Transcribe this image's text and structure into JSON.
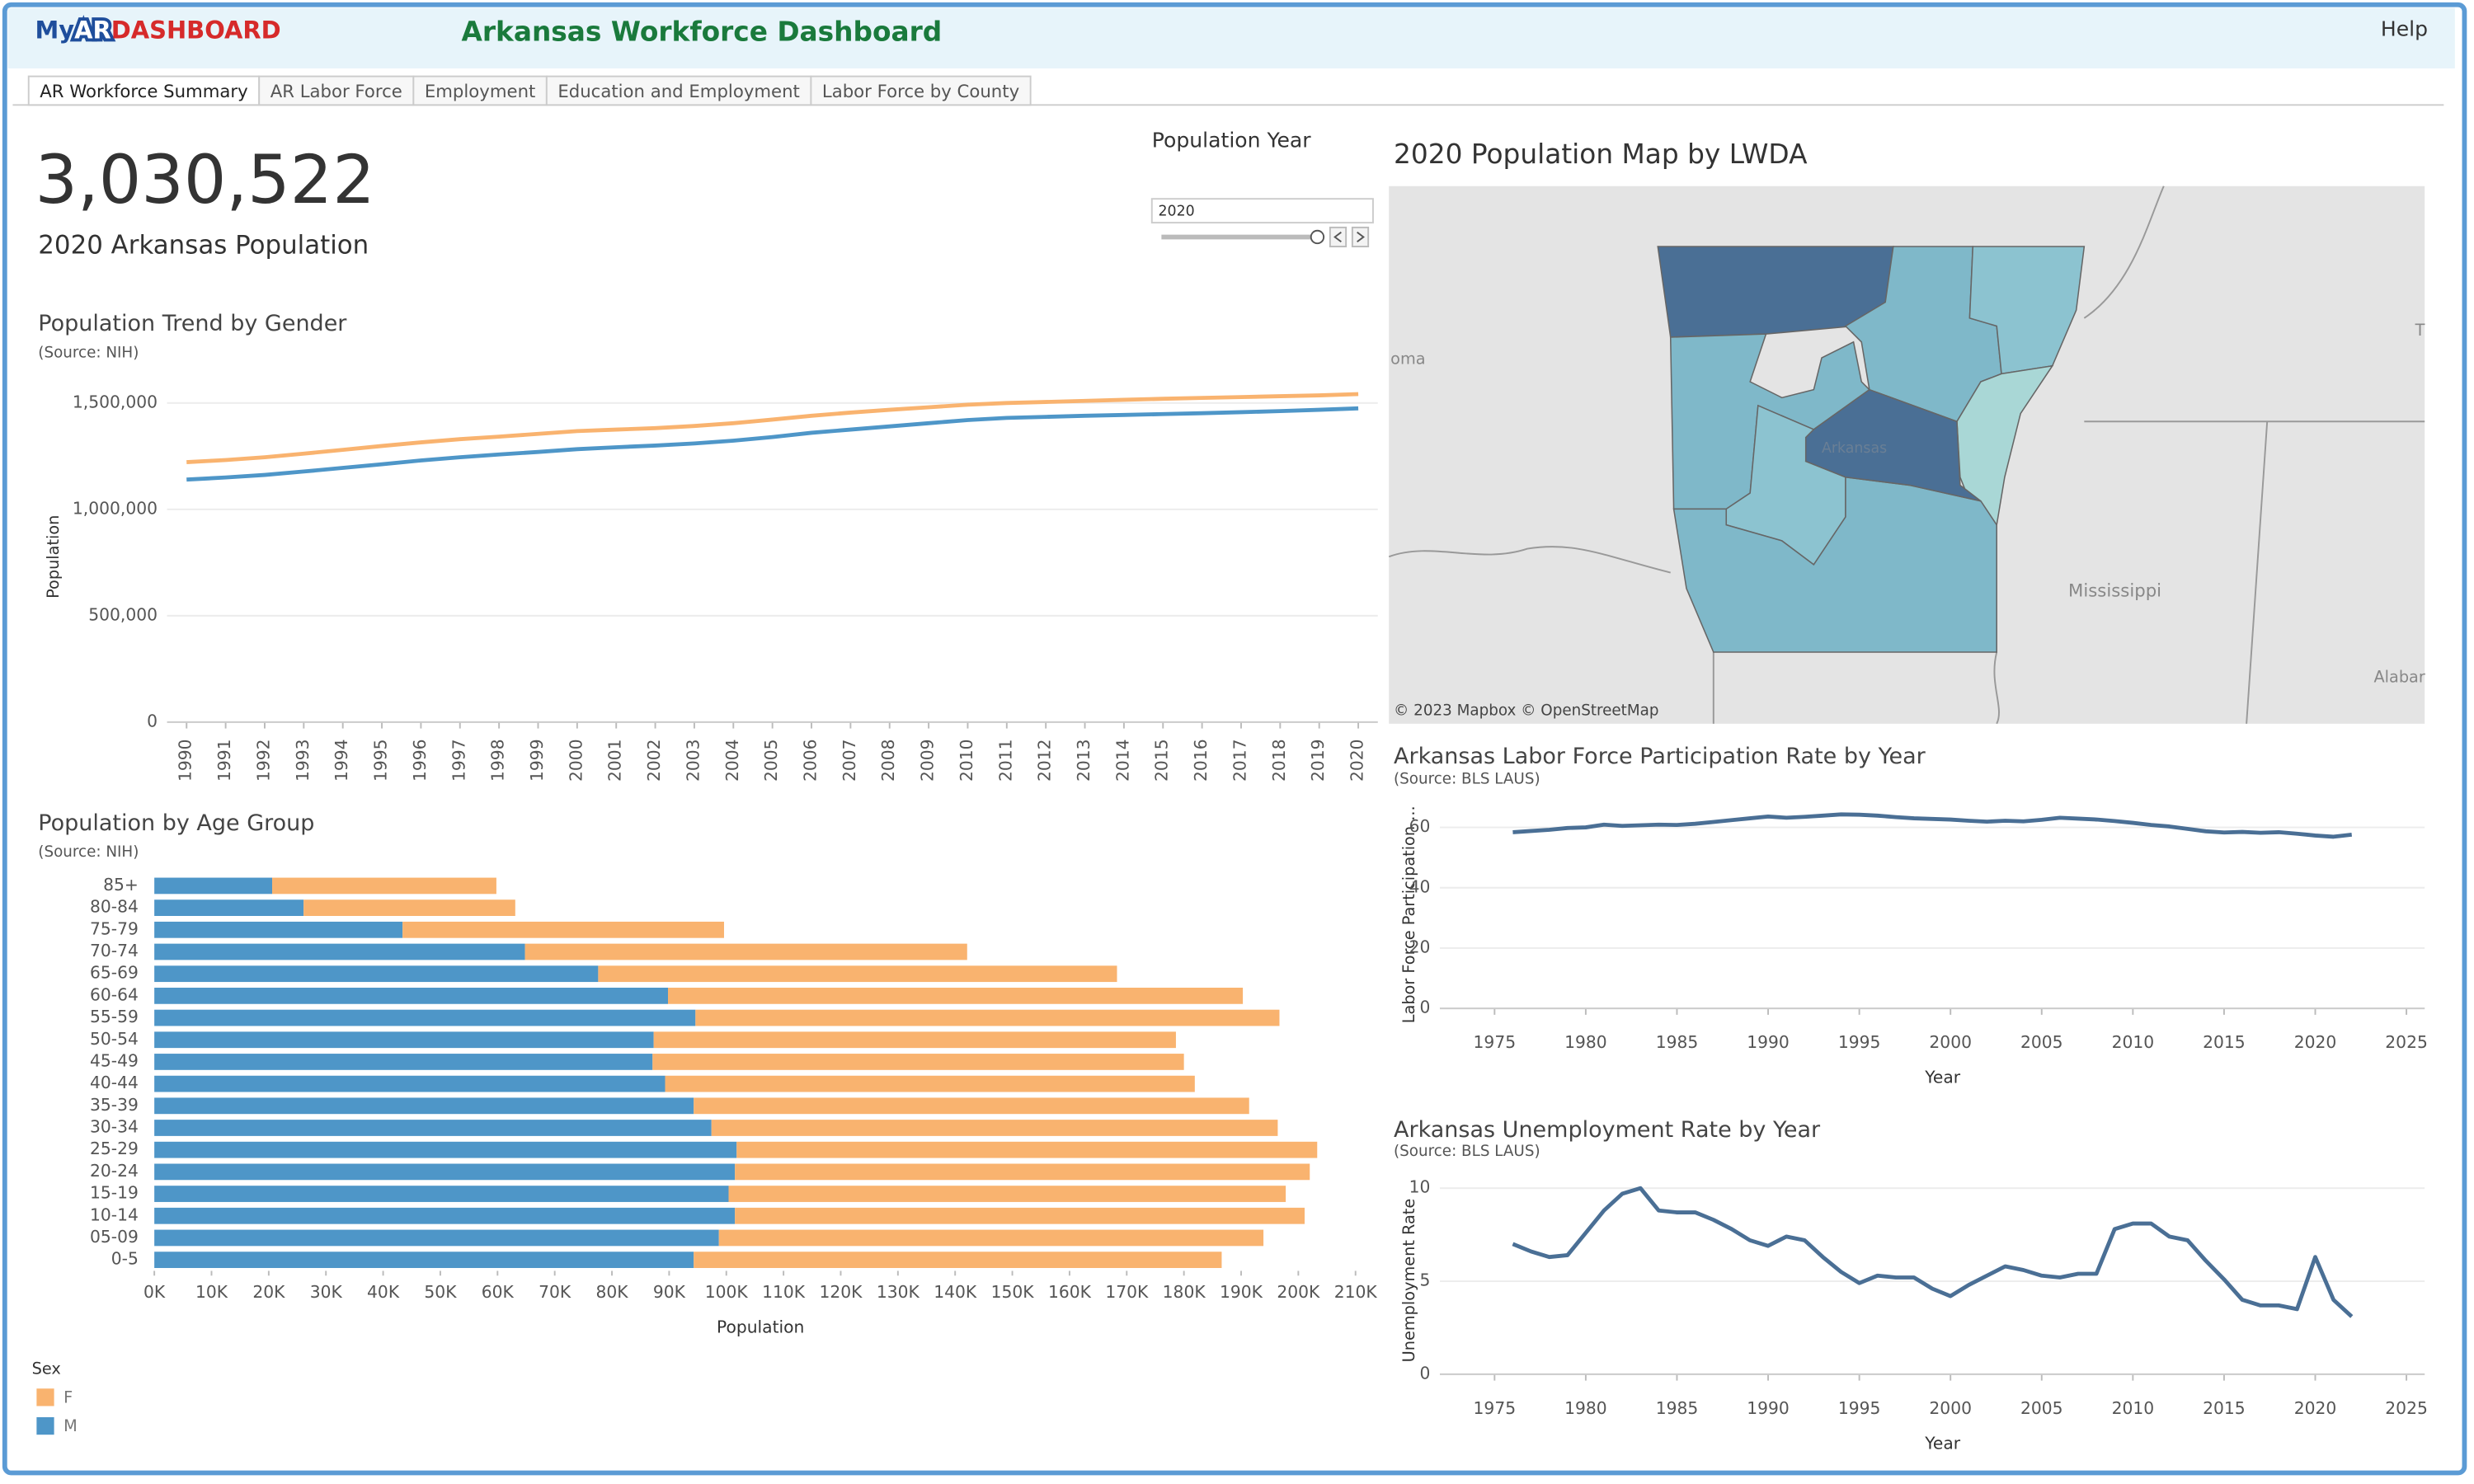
{
  "header": {
    "logo_my": "My",
    "logo_ar": "AR",
    "logo_dash": "DASHBOARD",
    "title": "Arkansas Workforce Dashboard",
    "help": "Help"
  },
  "tabs": [
    "AR Workforce Summary",
    "AR Labor Force",
    "Employment",
    "Education and Employment",
    "Labor Force by County"
  ],
  "kpi": {
    "value": "3,030,522",
    "label": "2020 Arkansas Population"
  },
  "filter": {
    "label": "Population Year",
    "value": "2020"
  },
  "map": {
    "title": "2020 Population Map by LWDA",
    "attribution": "© 2023 Mapbox © OpenStreetMap",
    "labels": [
      "oma",
      "Arkansas",
      "Mississippi",
      "Alabar",
      "T"
    ]
  },
  "chart_data": [
    {
      "type": "line",
      "title": "Population Trend by Gender",
      "subtitle": "(Source: NIH)",
      "ylabel": "Population",
      "x": [
        1990,
        1991,
        1992,
        1993,
        1994,
        1995,
        1996,
        1997,
        1998,
        1999,
        2000,
        2001,
        2002,
        2003,
        2004,
        2005,
        2006,
        2007,
        2008,
        2009,
        2010,
        2011,
        2012,
        2013,
        2014,
        2015,
        2016,
        2017,
        2018,
        2019,
        2020
      ],
      "xlim": [
        1989.5,
        2020.5
      ],
      "xticks": [
        1990,
        1991,
        1992,
        1993,
        1994,
        1995,
        1996,
        1997,
        1998,
        1999,
        2000,
        2001,
        2002,
        2003,
        2004,
        2005,
        2006,
        2007,
        2008,
        2009,
        2010,
        2011,
        2012,
        2013,
        2014,
        2015,
        2016,
        2017,
        2018,
        2019,
        2020
      ],
      "ylim": [
        0,
        1600000
      ],
      "yticks": [
        0,
        {
          "value": 500000,
          "label": "500,000"
        },
        {
          "value": 1000000,
          "label": "1,000,000"
        },
        {
          "value": 1500000,
          "label": "1,500,000"
        }
      ],
      "grid": true,
      "series": [
        {
          "color": "#f9b36f",
          "values": [
            1222000,
            1232000,
            1245000,
            1262000,
            1280000,
            1298000,
            1315000,
            1330000,
            1342000,
            1355000,
            1368000,
            1375000,
            1382000,
            1392000,
            1405000,
            1422000,
            1440000,
            1455000,
            1468000,
            1480000,
            1492000,
            1500000,
            1505000,
            1510000,
            1515000,
            1520000,
            1524000,
            1528000,
            1532000,
            1536000,
            1542000
          ]
        },
        {
          "color": "#4e96c8",
          "values": [
            1140000,
            1150000,
            1162000,
            1178000,
            1195000,
            1212000,
            1230000,
            1245000,
            1258000,
            1270000,
            1283000,
            1292000,
            1300000,
            1310000,
            1323000,
            1340000,
            1360000,
            1375000,
            1390000,
            1405000,
            1420000,
            1430000,
            1435000,
            1440000,
            1444000,
            1448000,
            1452000,
            1457000,
            1462000,
            1468000,
            1475000
          ]
        }
      ]
    },
    {
      "type": "bar",
      "orientation": "horizontal",
      "stacked": true,
      "title": "Population by Age Group",
      "subtitle": "(Source: NIH)",
      "xlabel": "Population",
      "legend_title": "Sex",
      "categories": [
        "85+",
        "80-84",
        "75-79",
        "70-74",
        "65-69",
        "60-64",
        "55-59",
        "50-54",
        "45-49",
        "40-44",
        "35-39",
        "30-34",
        "25-29",
        "20-24",
        "15-19",
        "10-14",
        "05-09",
        "0-5"
      ],
      "xlim": [
        0,
        210000
      ],
      "xticks": [
        {
          "value": 0,
          "label": "0K"
        },
        {
          "value": 10000,
          "label": "10K"
        },
        {
          "value": 20000,
          "label": "20K"
        },
        {
          "value": 30000,
          "label": "30K"
        },
        {
          "value": 40000,
          "label": "40K"
        },
        {
          "value": 50000,
          "label": "50K"
        },
        {
          "value": 60000,
          "label": "60K"
        },
        {
          "value": 70000,
          "label": "70K"
        },
        {
          "value": 80000,
          "label": "80K"
        },
        {
          "value": 90000,
          "label": "90K"
        },
        {
          "value": 100000,
          "label": "100K"
        },
        {
          "value": 110000,
          "label": "110K"
        },
        {
          "value": 120000,
          "label": "120K"
        },
        {
          "value": 130000,
          "label": "130K"
        },
        {
          "value": 140000,
          "label": "140K"
        },
        {
          "value": 150000,
          "label": "150K"
        },
        {
          "value": 160000,
          "label": "160K"
        },
        {
          "value": 170000,
          "label": "170K"
        },
        {
          "value": 180000,
          "label": "180K"
        },
        {
          "value": 190000,
          "label": "190K"
        },
        {
          "value": 200000,
          "label": "200K"
        },
        {
          "value": 210000,
          "label": "210K"
        }
      ],
      "series": [
        {
          "name": "M",
          "color": "#4e96c8",
          "values": [
            20600,
            26100,
            43400,
            64800,
            77600,
            89800,
            94600,
            87300,
            87100,
            89300,
            94300,
            97400,
            101800,
            101500,
            100400,
            101500,
            98700,
            94300
          ]
        },
        {
          "name": "F",
          "color": "#f9b36f",
          "values": [
            39200,
            37000,
            56200,
            77300,
            90700,
            100500,
            102100,
            91300,
            92900,
            92600,
            97100,
            99000,
            101500,
            100500,
            97400,
            99600,
            95200,
            92300
          ]
        }
      ]
    },
    {
      "type": "line",
      "title": "Arkansas Labor Force Participation Rate by Year",
      "subtitle": "(Source: BLS LAUS)",
      "ylabel": "Labor Force Participation ...",
      "xlabel": "Year",
      "x": [
        1976,
        1977,
        1978,
        1979,
        1980,
        1981,
        1982,
        1983,
        1984,
        1985,
        1986,
        1987,
        1988,
        1989,
        1990,
        1991,
        1992,
        1993,
        1994,
        1995,
        1996,
        1997,
        1998,
        1999,
        2000,
        2001,
        2002,
        2003,
        2004,
        2005,
        2006,
        2007,
        2008,
        2009,
        2010,
        2011,
        2012,
        2013,
        2014,
        2015,
        2016,
        2017,
        2018,
        2019,
        2020,
        2021,
        2022
      ],
      "xlim": [
        1972,
        2026
      ],
      "xticks": [
        1975,
        1980,
        1985,
        1990,
        1995,
        2000,
        2005,
        2010,
        2015,
        2020,
        2025
      ],
      "ylim": [
        0,
        68
      ],
      "yticks": [
        0,
        20,
        40,
        60
      ],
      "grid": true,
      "color": "#4a6f95",
      "values": [
        58.4,
        58.8,
        59.2,
        59.8,
        60.0,
        60.9,
        60.5,
        60.7,
        60.9,
        60.8,
        61.2,
        61.8,
        62.4,
        63.0,
        63.6,
        63.2,
        63.5,
        63.9,
        64.3,
        64.2,
        63.9,
        63.4,
        63.0,
        62.8,
        62.6,
        62.2,
        61.9,
        62.2,
        62.0,
        62.5,
        63.2,
        62.9,
        62.6,
        62.1,
        61.5,
        60.8,
        60.3,
        59.5,
        58.7,
        58.3,
        58.5,
        58.2,
        58.4,
        57.9,
        57.3,
        56.9,
        57.6
      ]
    },
    {
      "type": "line",
      "title": "Arkansas Unemployment Rate by Year",
      "subtitle": "(Source: BLS LAUS)",
      "ylabel": "Unemployment Rate",
      "xlabel": "Year",
      "x": [
        1976,
        1977,
        1978,
        1979,
        1980,
        1981,
        1982,
        1983,
        1984,
        1985,
        1986,
        1987,
        1988,
        1989,
        1990,
        1991,
        1992,
        1993,
        1994,
        1995,
        1996,
        1997,
        1998,
        1999,
        2000,
        2001,
        2002,
        2003,
        2004,
        2005,
        2006,
        2007,
        2008,
        2009,
        2010,
        2011,
        2012,
        2013,
        2014,
        2015,
        2016,
        2017,
        2018,
        2019,
        2020,
        2021,
        2022
      ],
      "xlim": [
        1972,
        2026
      ],
      "xticks": [
        1975,
        1980,
        1985,
        1990,
        1995,
        2000,
        2005,
        2010,
        2015,
        2020,
        2025
      ],
      "ylim": [
        0,
        10.6
      ],
      "yticks": [
        0,
        5,
        10
      ],
      "grid": true,
      "color": "#4a6f95",
      "values": [
        7.0,
        6.6,
        6.3,
        6.4,
        7.6,
        8.8,
        9.7,
        10.0,
        8.8,
        8.7,
        8.7,
        8.3,
        7.8,
        7.2,
        6.9,
        7.4,
        7.2,
        6.3,
        5.5,
        4.9,
        5.3,
        5.2,
        5.2,
        4.6,
        4.2,
        4.8,
        5.3,
        5.8,
        5.6,
        5.3,
        5.2,
        5.4,
        5.4,
        7.8,
        8.1,
        8.1,
        7.4,
        7.2,
        6.1,
        5.1,
        4.0,
        3.7,
        3.7,
        3.5,
        6.3,
        4.0,
        3.1
      ]
    }
  ]
}
